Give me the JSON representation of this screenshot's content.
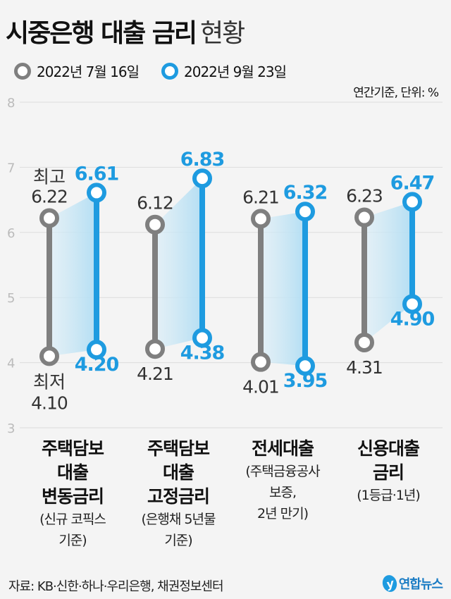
{
  "title": {
    "bold": "시중은행 대출 금리",
    "light": "현황"
  },
  "legend": [
    {
      "label": "2022년 7월 16일",
      "color": "#7f7f7f"
    },
    {
      "label": "2022년 9월 23일",
      "color": "#1e9be0"
    }
  ],
  "unit_note": "연간기준, 단위: %",
  "source": "자료: KB·신한·하나·우리은행, 채권정보센터",
  "logo": "연합뉴스",
  "chart_data": {
    "type": "range-dumbbell",
    "ylim": [
      3,
      8
    ],
    "yticks": [
      "3",
      "4",
      "5",
      "6",
      "7",
      "8"
    ],
    "annotations": {
      "high": "최고",
      "low": "최저"
    },
    "categories": [
      {
        "main": [
          "주택담보",
          "대출",
          "변동금리"
        ],
        "note": [
          "(신규 코픽스",
          "기준)"
        ]
      },
      {
        "main": [
          "주택담보",
          "대출",
          "고정금리"
        ],
        "note": [
          "(은행채 5년물",
          "기준)"
        ]
      },
      {
        "main": [
          "전세대출"
        ],
        "note": [
          "(주택금융공사",
          "보증,",
          "2년 만기)"
        ]
      },
      {
        "main": [
          "신용대출",
          "금리"
        ],
        "note": [
          "(1등급·1년)"
        ]
      }
    ],
    "series": [
      {
        "name": "2022년 7월 16일",
        "high": [
          "6.22",
          "6.12",
          "6.21",
          "6.23"
        ],
        "low": [
          "4.10",
          "4.21",
          "4.01",
          "4.31"
        ]
      },
      {
        "name": "2022년 9월 23일",
        "high": [
          "6.61",
          "6.83",
          "6.32",
          "6.47"
        ],
        "low": [
          "4.20",
          "4.38",
          "3.95",
          "4.90"
        ]
      }
    ]
  }
}
